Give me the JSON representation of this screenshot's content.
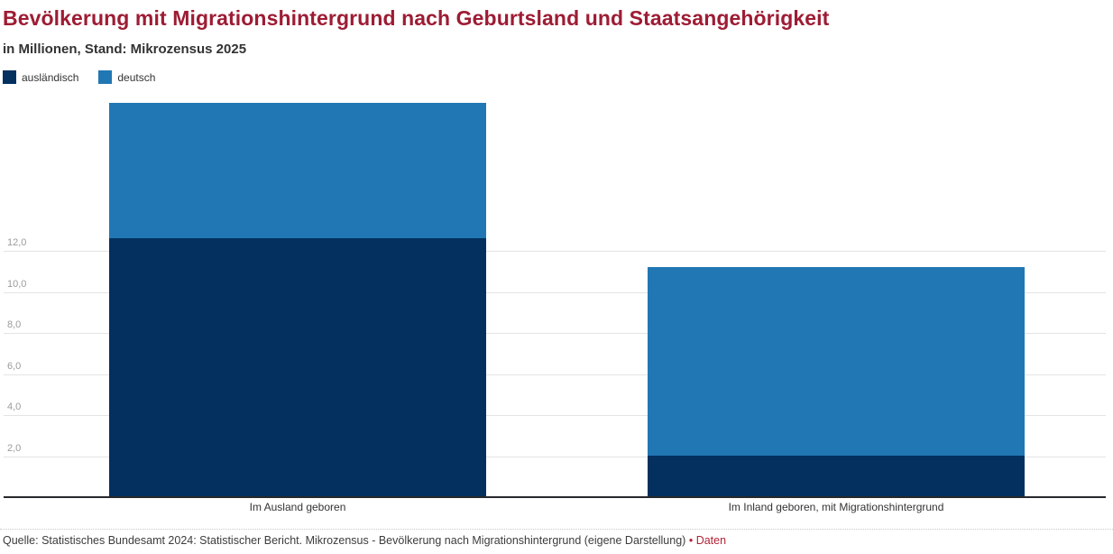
{
  "header": {
    "title": "Bevölkerung mit Migrationshintergrund nach Geburtsland und Staatsangehörigkeit",
    "subtitle": "in Millionen, Stand: Mikrozensus 2025"
  },
  "legend": {
    "items": [
      {
        "label": "ausländisch",
        "color": "#03305f"
      },
      {
        "label": "deutsch",
        "color": "#2177b4"
      }
    ]
  },
  "chart_data": {
    "type": "bar",
    "stacked": true,
    "title": "Bevölkerung mit Migrationshintergrund nach Geburtsland und Staatsangehörigkeit",
    "subtitle": "in Millionen, Stand: Mikrozensus 2025",
    "categories": [
      "Im Ausland geboren",
      "Im Inland geboren, mit Migrationshintergrund"
    ],
    "series": [
      {
        "name": "ausländisch",
        "color": "#03305f",
        "values": [
          12.6,
          2.0
        ]
      },
      {
        "name": "deutsch",
        "color": "#2177b4",
        "values": [
          6.6,
          9.2
        ]
      }
    ],
    "totals": [
      19.2,
      11.2
    ],
    "xlabel": "",
    "ylabel": "in Millionen",
    "ylim": [
      0,
      19.8
    ],
    "grid": true,
    "legend_position": "top-left",
    "y_ticks": [
      {
        "value": 2,
        "label": "2,0"
      },
      {
        "value": 4,
        "label": "4,0"
      },
      {
        "value": 6,
        "label": "6,0"
      },
      {
        "value": 8,
        "label": "8,0"
      },
      {
        "value": 10,
        "label": "10,0"
      },
      {
        "value": 12,
        "label": "12,0"
      }
    ]
  },
  "footer": {
    "source_text": "Quelle: Statistisches Bundesamt 2024: Statistischer Bericht. Mikrozensus - Bevölkerung nach Migrationshintergrund (eigene Darstellung)",
    "bullet": "•",
    "data_link_label": "Daten"
  },
  "colors": {
    "title": "#9d1c34",
    "subtitle": "#333333",
    "link": "#b32236",
    "gridline": "#e4e4e4",
    "axis_line": "#26282b",
    "tick_label": "#9b9b9b"
  }
}
